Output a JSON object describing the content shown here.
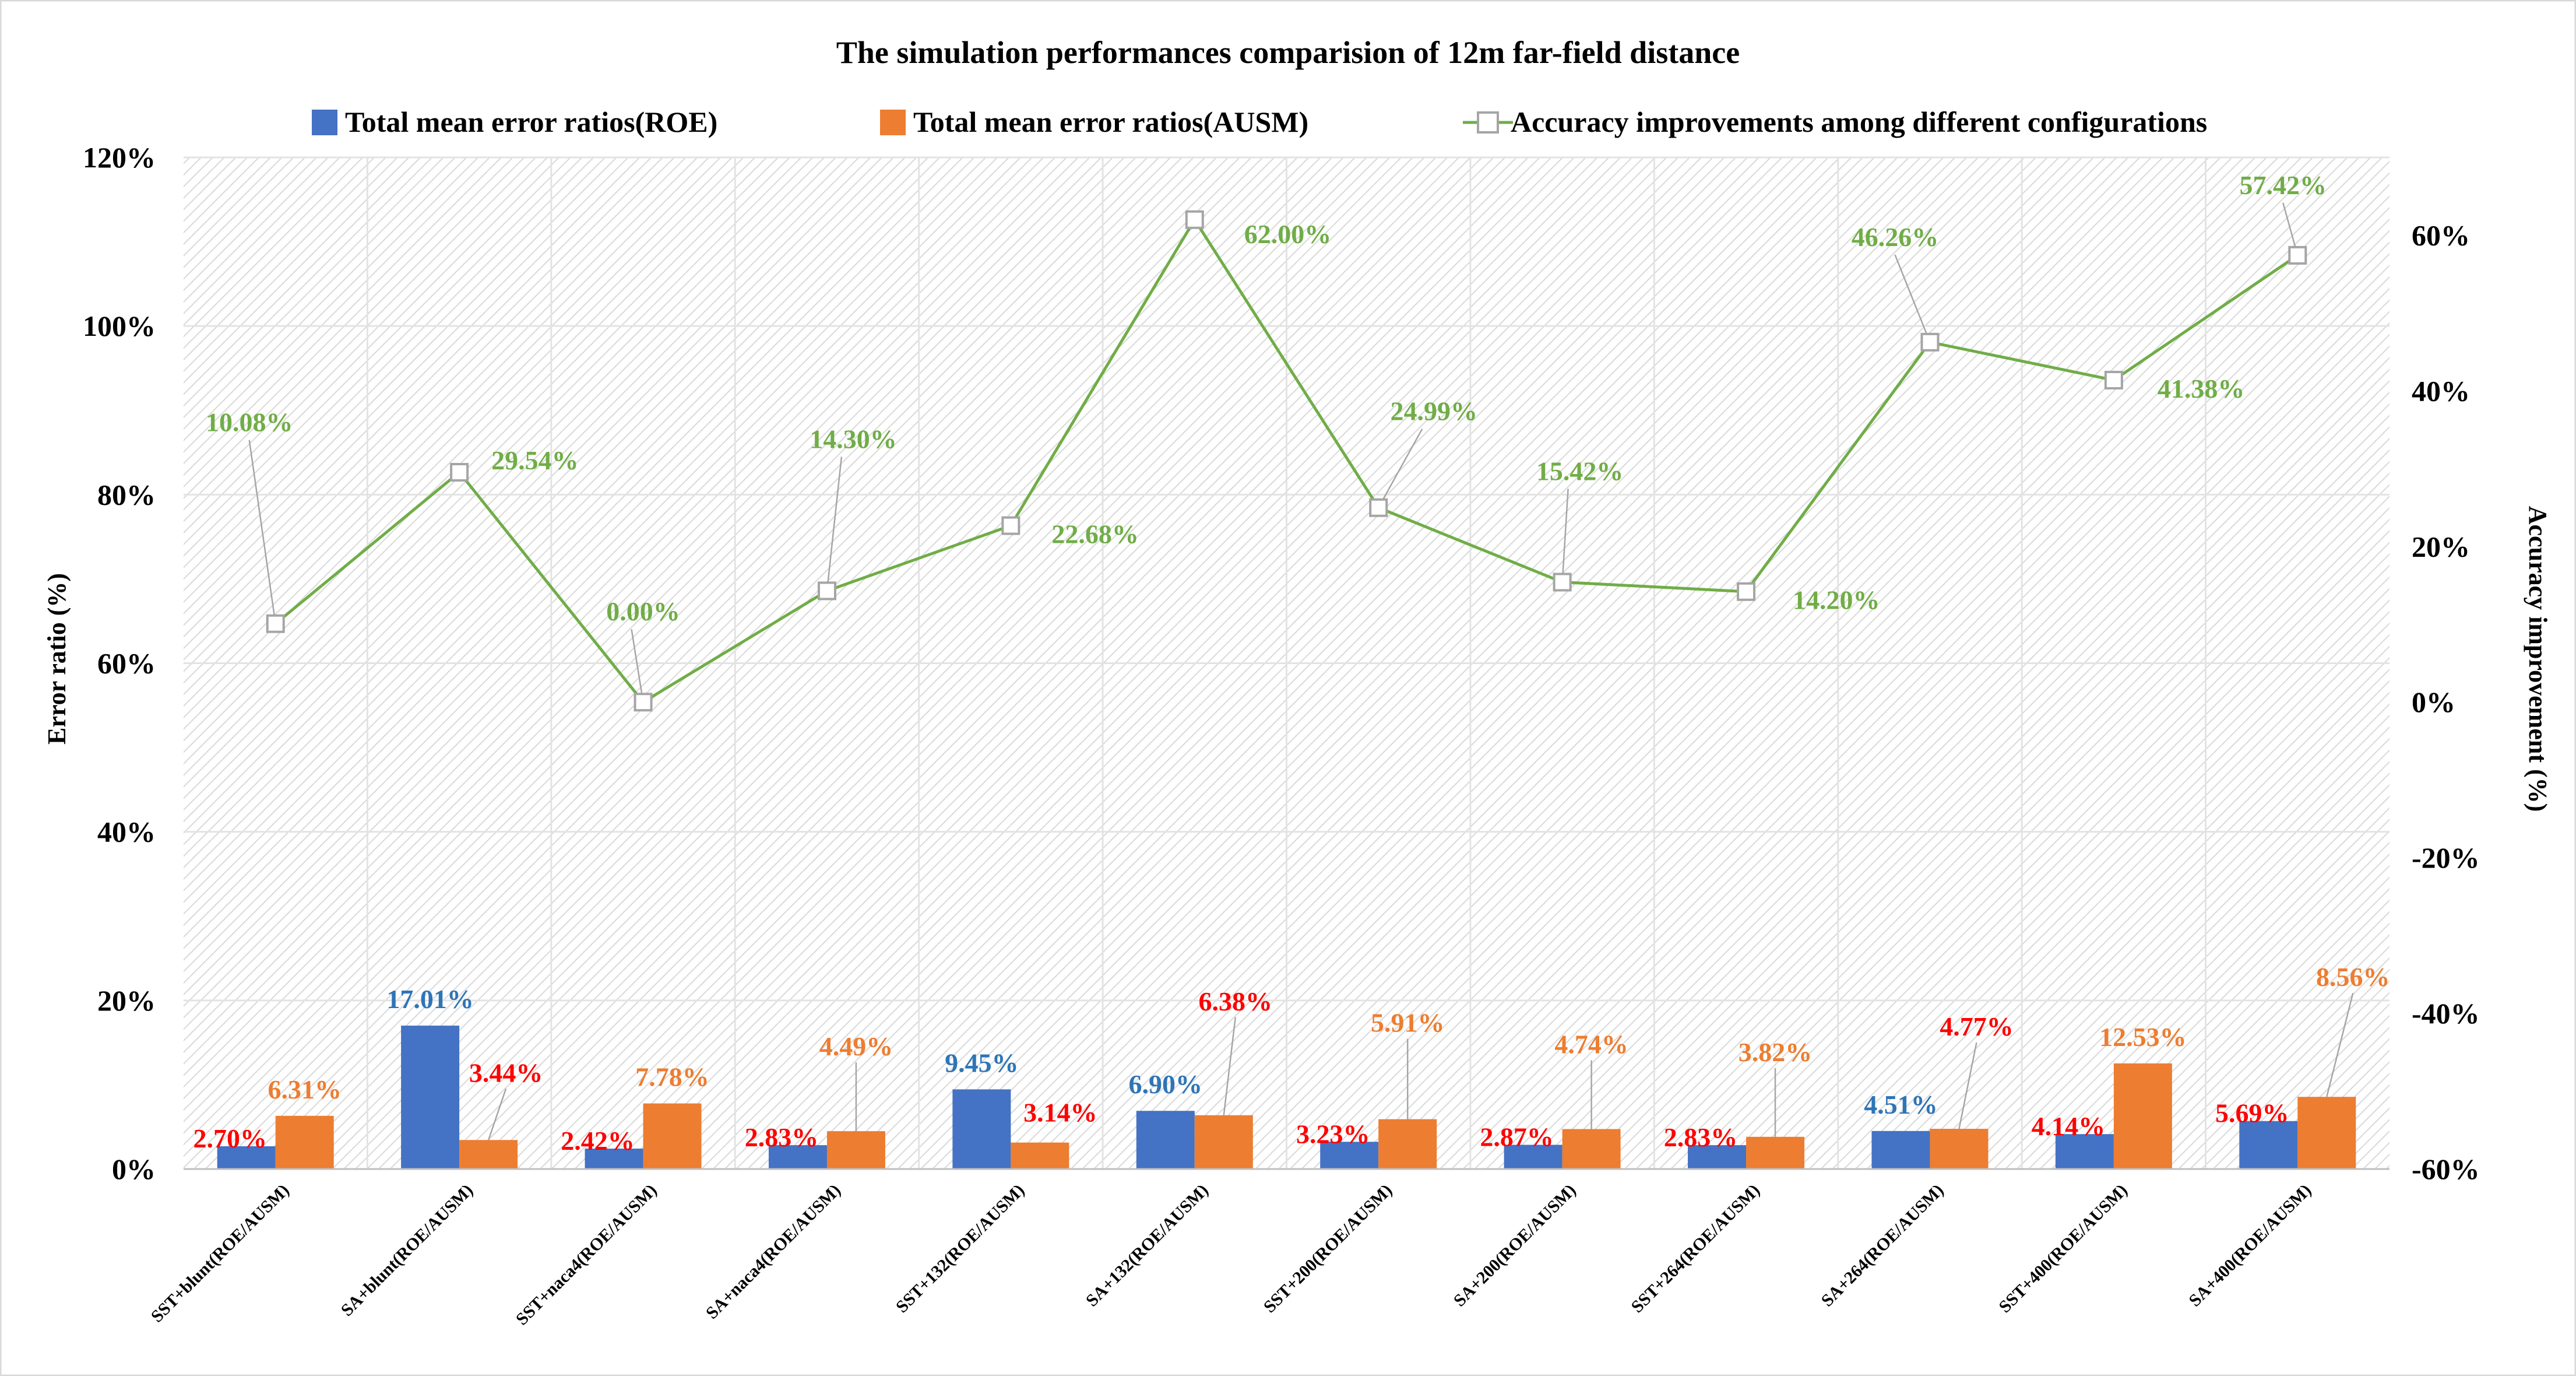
{
  "chart_data": {
    "type": "bar+line",
    "title": "The simulation performances comparision of 12m far-field distance",
    "ylabel_left": "Error ratio (%)",
    "ylabel_right": "Accuracy improvement (%)",
    "ylim_left": [
      0,
      120
    ],
    "ylim_right": [
      -60,
      70
    ],
    "yticks_left": [
      "0%",
      "20%",
      "40%",
      "60%",
      "80%",
      "100%",
      "120%"
    ],
    "yticks_right": [
      "-60%",
      "-40%",
      "-20%",
      "0%",
      "20%",
      "40%",
      "60%"
    ],
    "categories": [
      "SST+blunt(ROE/AUSM)",
      "SA+blunt(ROE/AUSM)",
      "SST+naca4(ROE/AUSM)",
      "SA+naca4(ROE/AUSM)",
      "SST+132(ROE/AUSM)",
      "SA+132(ROE/AUSM)",
      "SST+200(ROE/AUSM)",
      "SA+200(ROE/AUSM)",
      "SST+264(ROE/AUSM)",
      "SA+264(ROE/AUSM)",
      "SST+400(ROE/AUSM)",
      "SA+400(ROE/AUSM)"
    ],
    "series": [
      {
        "name": "Total mean error ratios(ROE)",
        "type": "bar",
        "axis": "left",
        "color": "#4472C4",
        "values": [
          2.7,
          17.01,
          2.42,
          2.83,
          9.45,
          6.9,
          3.23,
          2.87,
          2.83,
          4.51,
          4.14,
          5.69
        ],
        "labels": [
          "2.70%",
          "17.01%",
          "2.42%",
          "2.83%",
          "9.45%",
          "6.90%",
          "3.23%",
          "2.87%",
          "2.83%",
          "4.51%",
          "4.14%",
          "5.69%"
        ],
        "label_colors": [
          "#FF0000",
          "#2E75B6",
          "#FF0000",
          "#FF0000",
          "#2E75B6",
          "#2E75B6",
          "#FF0000",
          "#FF0000",
          "#FF0000",
          "#2E75B6",
          "#FF0000",
          "#FF0000"
        ]
      },
      {
        "name": "Total mean error ratios(AUSM)",
        "type": "bar",
        "axis": "left",
        "color": "#ED7D31",
        "values": [
          6.31,
          3.44,
          7.78,
          4.49,
          3.14,
          6.38,
          5.91,
          4.74,
          3.82,
          4.77,
          12.53,
          8.56
        ],
        "labels": [
          "6.31%",
          "3.44%",
          "7.78%",
          "4.49%",
          "3.14%",
          "6.38%",
          "5.91%",
          "4.74%",
          "3.82%",
          "4.77%",
          "12.53%",
          "8.56%"
        ],
        "label_colors": [
          "#ED7D31",
          "#FF0000",
          "#ED7D31",
          "#ED7D31",
          "#FF0000",
          "#FF0000",
          "#ED7D31",
          "#ED7D31",
          "#ED7D31",
          "#FF0000",
          "#ED7D31",
          "#ED7D31"
        ]
      },
      {
        "name": "Accuracy improvements among different configurations",
        "type": "line",
        "axis": "right",
        "color": "#70AD47",
        "marker_color": "#A5A5A5",
        "values": [
          10.08,
          29.54,
          0.0,
          14.3,
          22.68,
          62.0,
          24.99,
          15.42,
          14.2,
          46.26,
          41.38,
          57.42
        ],
        "labels": [
          "10.08%",
          "29.54%",
          "0.00%",
          "14.30%",
          "22.68%",
          "62.00%",
          "24.99%",
          "15.42%",
          "14.20%",
          "46.26%",
          "41.38%",
          "57.42%"
        ]
      }
    ],
    "legend_position": "top"
  }
}
